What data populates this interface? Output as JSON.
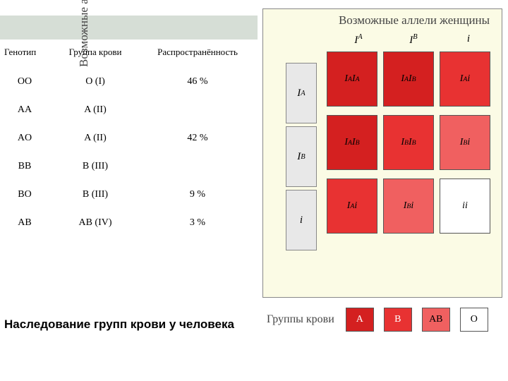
{
  "table": {
    "headers": {
      "genotype": "Генотип",
      "group": "Группа крови",
      "prev": "Распространённость"
    },
    "rows": [
      {
        "g": "OO",
        "gr": "O (I)",
        "p": "46 %"
      },
      {
        "g": "AA",
        "gr": "A (II)",
        "p": ""
      },
      {
        "g": "AO",
        "gr": "A (II)",
        "p": "42 %"
      },
      {
        "g": "BB",
        "gr": "B (III)",
        "p": ""
      },
      {
        "g": "BO",
        "gr": "B (III)",
        "p": "9 %"
      },
      {
        "g": "AB",
        "gr": "AB (IV)",
        "p": "3 %"
      }
    ]
  },
  "caption": "Наследование групп крови у человека",
  "punnett": {
    "title_female": "Возможные аллели женщины",
    "title_male": "Возможные аллели мужчины",
    "col_labels": [
      "I<sup>A</sup>",
      "I<sup>B</sup>",
      "i"
    ],
    "row_labels": [
      "I<sup>A</sup>",
      "I<sup>B</sup>",
      "i"
    ],
    "cells": [
      [
        {
          "txt": "I<sup>A</sup>I<sup>A</sup>",
          "bg": "#d42020"
        },
        {
          "txt": "I<sup>A</sup>I<sup>B</sup>",
          "bg": "#d42020"
        },
        {
          "txt": "I<sup>A</sup>i",
          "bg": "#e83232"
        }
      ],
      [
        {
          "txt": "I<sup>A</sup>I<sup>B</sup>",
          "bg": "#d42020"
        },
        {
          "txt": "I<sup>B</sup>I<sup>B</sup>",
          "bg": "#e83232"
        },
        {
          "txt": "I<sup>B</sup>i",
          "bg": "#f06060"
        }
      ],
      [
        {
          "txt": "I<sup>A</sup>i",
          "bg": "#e83232"
        },
        {
          "txt": "I<sup>B</sup>i",
          "bg": "#f06060"
        },
        {
          "txt": "ii",
          "bg": "#ffffff"
        }
      ]
    ],
    "row_hdr_bg": [
      "#e8e8e8",
      "#e8e8e8",
      "#e8e8e8"
    ]
  },
  "legend": {
    "label": "Группы крови",
    "items": [
      {
        "txt": "A",
        "bg": "#d42020",
        "fg": "#fff"
      },
      {
        "txt": "B",
        "bg": "#e83232",
        "fg": "#fff"
      },
      {
        "txt": "AB",
        "bg": "#f06060",
        "fg": "#000"
      },
      {
        "txt": "O",
        "bg": "#ffffff",
        "fg": "#000"
      }
    ]
  },
  "colors": {
    "panel_bg": "#fbfbe5",
    "bar": "#d6ded6"
  }
}
